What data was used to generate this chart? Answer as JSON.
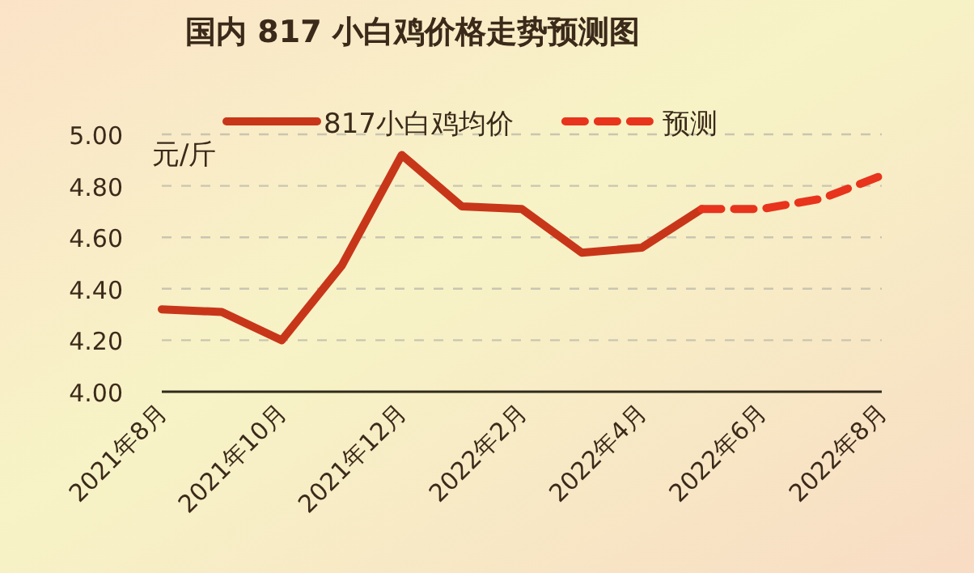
{
  "chart_data": {
    "type": "line",
    "title": "国内 817 小白鸡价格走势预测图",
    "ylabel": "元/斤",
    "categories": [
      "2021年8月",
      null,
      "2021年10月",
      null,
      "2021年12月",
      null,
      "2022年2月",
      null,
      "2022年4月",
      null,
      "2022年6月",
      null,
      "2022年8月"
    ],
    "series": [
      {
        "name": "817小白鸡均价",
        "color": "#c8361a",
        "line_style": "solid",
        "values": [
          4.32,
          4.31,
          4.2,
          4.49,
          4.92,
          4.72,
          4.71,
          4.54,
          4.56,
          4.71,
          null,
          null,
          null
        ]
      },
      {
        "name": "预测",
        "color": "#e8341c",
        "line_style": "dashed",
        "values": [
          null,
          null,
          null,
          null,
          null,
          null,
          null,
          null,
          null,
          4.71,
          4.71,
          4.75,
          4.84
        ]
      }
    ],
    "ylim": [
      4.0,
      5.0
    ],
    "yticks": [
      {
        "value": 4.0,
        "label": "4.00"
      },
      {
        "value": 4.2,
        "label": "4.20"
      },
      {
        "value": 4.4,
        "label": "4.40"
      },
      {
        "value": 4.6,
        "label": "4.60"
      },
      {
        "value": 4.8,
        "label": "4.80"
      },
      {
        "value": 5.0,
        "label": "5.00"
      }
    ],
    "grid": "y",
    "legend": "top",
    "marker": "none"
  }
}
